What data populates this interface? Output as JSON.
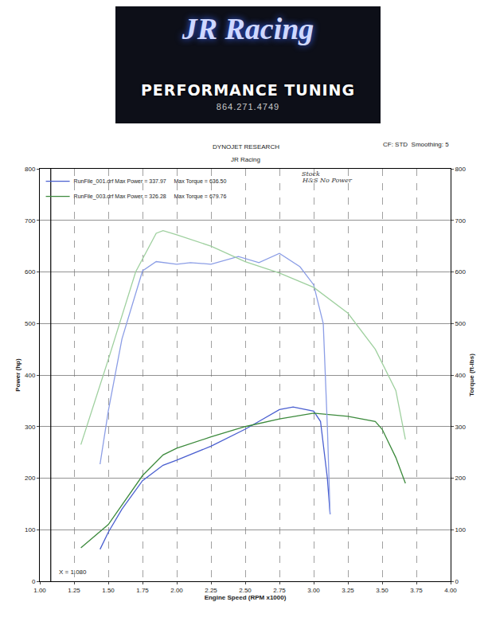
{
  "banner": {
    "brand": "JR Racing",
    "tagline": "PERFORMANCE TUNING",
    "phone": "864.271.4749"
  },
  "chart_data": {
    "type": "line",
    "title": "DYNOJET RESEARCH",
    "subtitle": "JR Racing",
    "annotations": [
      "CF: STD  Smoothing: 5"
    ],
    "x_label": "Engine Speed (RPM x1000)",
    "y_label": "Power (hp)",
    "y2_label": "Torque (ft-lbs)",
    "xlim": [
      1.0,
      4.0
    ],
    "xticks": [
      {
        "value": 1.0,
        "label": "1.00"
      },
      {
        "value": 1.25,
        "label": "1.25"
      },
      {
        "value": 1.5,
        "label": "1.50"
      },
      {
        "value": 1.75,
        "label": "1.75"
      },
      {
        "value": 2.0,
        "label": "2.00"
      },
      {
        "value": 2.25,
        "label": "2.25"
      },
      {
        "value": 2.5,
        "label": "2.50"
      },
      {
        "value": 2.75,
        "label": "2.75"
      },
      {
        "value": 3.0,
        "label": "3.00"
      },
      {
        "value": 3.25,
        "label": "3.25"
      },
      {
        "value": 3.5,
        "label": "3.50"
      },
      {
        "value": 3.75,
        "label": "3.75"
      },
      {
        "value": 4.0,
        "label": "4.00"
      }
    ],
    "ylim": [
      0,
      800
    ],
    "yticks": [
      0,
      100,
      200,
      300,
      400,
      500,
      600,
      700,
      800
    ],
    "y2lim": [
      0,
      800
    ],
    "y2ticks": [
      0,
      100,
      200,
      300,
      400,
      500,
      600,
      700,
      800
    ],
    "grid": true,
    "legend": "top-left",
    "cursor": {
      "x": 1.08,
      "label": "X = 1.080"
    },
    "notes": [
      {
        "text": "Stock",
        "y": 790
      },
      {
        "text": "H&S No Power",
        "y": 777
      }
    ],
    "series": [
      {
        "name": "RunFile_001.drf Max Power = 337.97     Max Torque = 636.50",
        "color": "#4a5fd0",
        "axis": "y",
        "x": [
          1.44,
          1.5,
          1.6,
          1.75,
          1.9,
          2.0,
          2.25,
          2.5,
          2.6,
          2.75,
          2.85,
          3.0,
          3.05,
          3.1,
          3.12
        ],
        "values": [
          62,
          95,
          140,
          195,
          225,
          235,
          262,
          295,
          310,
          333,
          338,
          330,
          310,
          200,
          130
        ]
      },
      {
        "color": "#8c9ee6",
        "axis": "y2",
        "x": [
          1.44,
          1.5,
          1.6,
          1.75,
          1.85,
          2.0,
          2.1,
          2.25,
          2.45,
          2.6,
          2.75,
          2.9,
          3.0,
          3.07,
          3.1,
          3.12
        ],
        "values": [
          227,
          330,
          470,
          602,
          620,
          615,
          618,
          615,
          630,
          618,
          636,
          610,
          575,
          500,
          300,
          130
        ]
      },
      {
        "name": "RunFile_003.drf Max Power = 326.28     Max Torque = 679.76",
        "color": "#3c8a3c",
        "axis": "y",
        "x": [
          1.3,
          1.5,
          1.75,
          1.9,
          2.0,
          2.25,
          2.5,
          2.75,
          3.0,
          3.25,
          3.45,
          3.5,
          3.6,
          3.67
        ],
        "values": [
          65,
          110,
          205,
          245,
          258,
          280,
          300,
          315,
          326,
          320,
          310,
          295,
          240,
          190
        ]
      },
      {
        "color": "#9fd09f",
        "axis": "y2",
        "x": [
          1.3,
          1.5,
          1.7,
          1.85,
          1.9,
          2.0,
          2.25,
          2.5,
          2.75,
          3.0,
          3.25,
          3.45,
          3.6,
          3.67
        ],
        "values": [
          265,
          430,
          600,
          675,
          680,
          672,
          650,
          620,
          598,
          570,
          520,
          450,
          370,
          275
        ]
      }
    ]
  }
}
